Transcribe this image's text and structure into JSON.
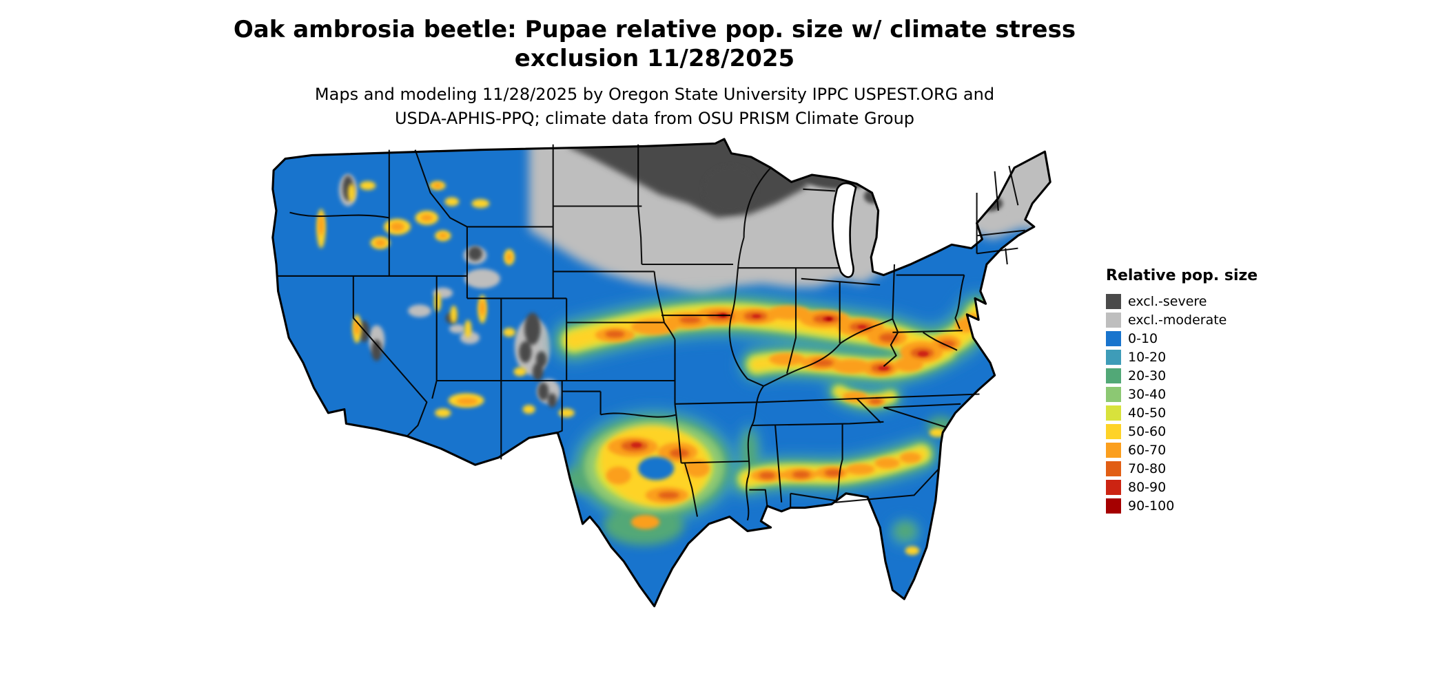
{
  "title": {
    "line1": "Oak ambrosia beetle: Pupae relative pop. size w/ climate stress",
    "line2": "exclusion 11/28/2025",
    "full": "Oak ambrosia beetle: Pupae relative pop. size w/ climate stress\nexclusion 11/28/2025"
  },
  "subtitle": {
    "line1": "Maps and modeling 11/28/2025 by Oregon State University IPPC USPEST.ORG and",
    "line2": "USDA-APHIS-PPQ; climate data from OSU PRISM Climate Group",
    "full": "Maps and modeling 11/28/2025 by Oregon State University IPPC USPEST.ORG and\nUSDA-APHIS-PPQ; climate data from OSU PRISM Climate Group"
  },
  "map": {
    "region": "Continental United States",
    "background": "#ffffff",
    "border_color": "#000000",
    "water_color": "#ffffff"
  },
  "legend": {
    "title": "Relative pop. size",
    "items": [
      {
        "label": "excl.-severe",
        "color": "#4a4a4a"
      },
      {
        "label": "excl.-moderate",
        "color": "#bebebe"
      },
      {
        "label": "0-10",
        "color": "#1874cd"
      },
      {
        "label": "10-20",
        "color": "#3e9cb8"
      },
      {
        "label": "20-30",
        "color": "#52a877"
      },
      {
        "label": "30-40",
        "color": "#8cc873"
      },
      {
        "label": "40-50",
        "color": "#d8e23c"
      },
      {
        "label": "50-60",
        "color": "#fed327"
      },
      {
        "label": "60-70",
        "color": "#fb9f1e"
      },
      {
        "label": "70-80",
        "color": "#e15e14"
      },
      {
        "label": "80-90",
        "color": "#cc2412"
      },
      {
        "label": "90-100",
        "color": "#a50000"
      }
    ]
  }
}
